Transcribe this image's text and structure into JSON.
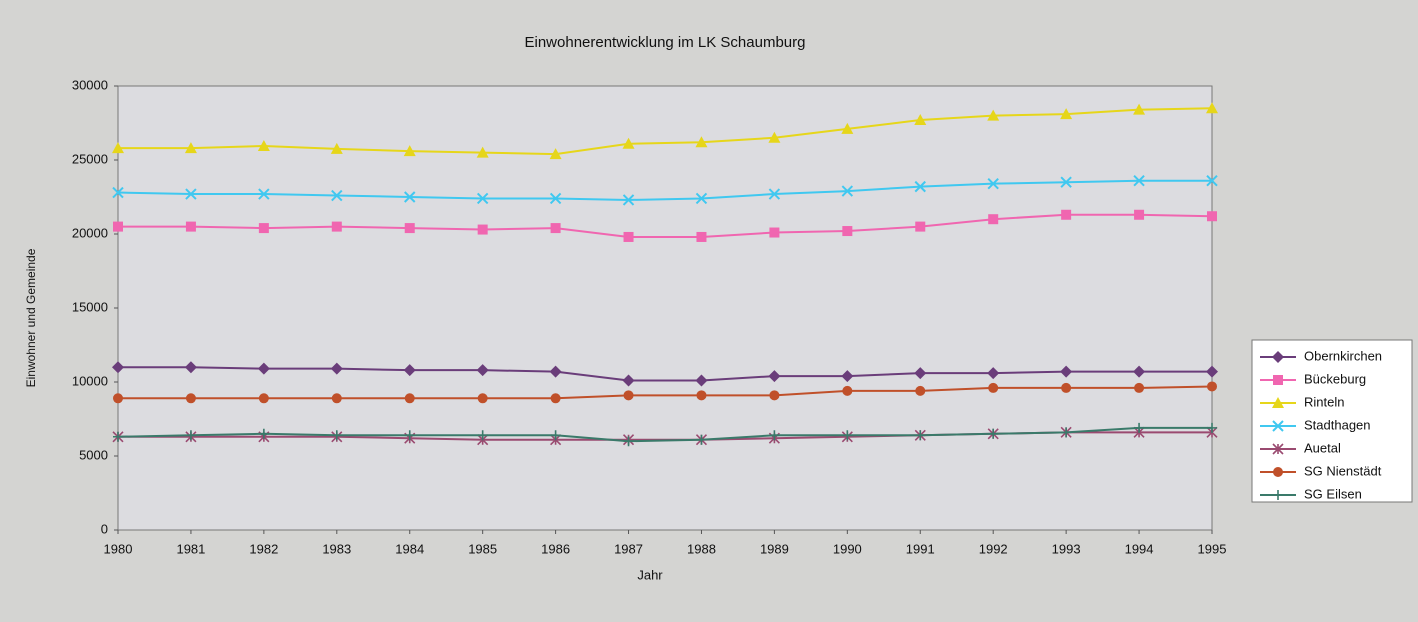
{
  "chart_data": {
    "type": "line",
    "title": "Einwohnerentwicklung im LK Schaumburg",
    "xlabel": "Jahr",
    "ylabel": "Einwohner und Gemeinde",
    "x": [
      1980,
      1981,
      1982,
      1983,
      1984,
      1985,
      1986,
      1987,
      1988,
      1989,
      1990,
      1991,
      1992,
      1993,
      1994,
      1995
    ],
    "xlim": [
      1980,
      1995
    ],
    "xticks": [
      1980,
      1981,
      1982,
      1983,
      1984,
      1985,
      1986,
      1987,
      1988,
      1989,
      1990,
      1991,
      1992,
      1993,
      1994,
      1995
    ],
    "ylim": [
      0,
      30000
    ],
    "yticks": [
      0,
      5000,
      10000,
      15000,
      20000,
      25000,
      30000
    ],
    "grid": false,
    "legend": "right",
    "series": [
      {
        "name": "Obernkirchen",
        "color": "#6a3d7a",
        "marker": "diamond",
        "values": [
          11000,
          11000,
          10900,
          10900,
          10800,
          10800,
          10700,
          10100,
          10100,
          10400,
          10400,
          10600,
          10600,
          10700,
          10700,
          10700
        ]
      },
      {
        "name": "Bückeburg",
        "color": "#f066b0",
        "marker": "square",
        "values": [
          20500,
          20500,
          20400,
          20500,
          20400,
          20300,
          20400,
          19800,
          19800,
          20100,
          20200,
          20500,
          21000,
          21300,
          21300,
          21200
        ]
      },
      {
        "name": "Rinteln",
        "color": "#e6d61a",
        "marker": "triangle",
        "values": [
          25800,
          25800,
          25950,
          25750,
          25600,
          25500,
          25400,
          26100,
          26200,
          26500,
          27100,
          27700,
          28000,
          28100,
          28400,
          28500
        ]
      },
      {
        "name": "Stadthagen",
        "color": "#40c8f0",
        "marker": "x",
        "values": [
          22800,
          22700,
          22700,
          22600,
          22500,
          22400,
          22400,
          22300,
          22400,
          22700,
          22900,
          23200,
          23400,
          23500,
          23600,
          23600
        ]
      },
      {
        "name": "Auetal",
        "color": "#9a4a70",
        "marker": "star",
        "values": [
          6300,
          6300,
          6300,
          6300,
          6200,
          6100,
          6100,
          6100,
          6100,
          6200,
          6300,
          6400,
          6500,
          6600,
          6600,
          6600
        ]
      },
      {
        "name": "SG Nienstädt",
        "color": "#c0502a",
        "marker": "circle",
        "values": [
          8900,
          8900,
          8900,
          8900,
          8900,
          8900,
          8900,
          9100,
          9100,
          9100,
          9400,
          9400,
          9600,
          9600,
          9600,
          9700
        ]
      },
      {
        "name": "SG Eilsen",
        "color": "#3a7a6a",
        "marker": "plus",
        "values": [
          6300,
          6400,
          6500,
          6400,
          6400,
          6400,
          6400,
          6000,
          6100,
          6400,
          6400,
          6400,
          6500,
          6600,
          6900,
          6900
        ]
      }
    ]
  }
}
